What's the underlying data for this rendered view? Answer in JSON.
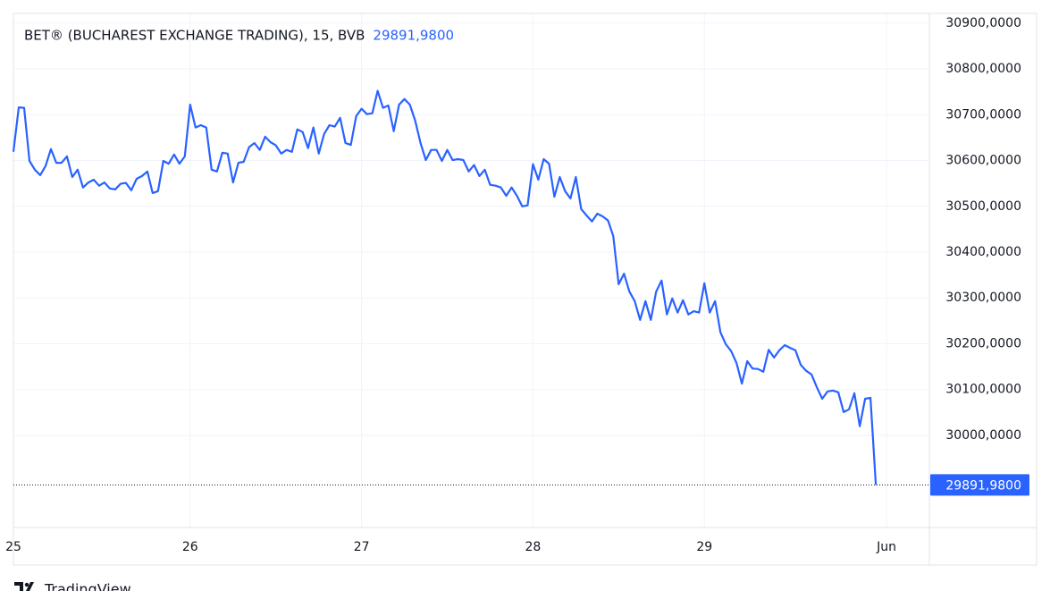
{
  "chart_data": {
    "type": "line",
    "title": "BET® (BUCHAREST EXCHANGE TRADING), 15, BVB",
    "last_value": {
      "value": 29891.98,
      "label": "29891,9800"
    },
    "brand": "TradingView",
    "grid": true,
    "xlim": [
      0,
      171
    ],
    "xticks": [
      {
        "value": 0,
        "label": "25"
      },
      {
        "value": 33,
        "label": "26"
      },
      {
        "value": 65,
        "label": "27"
      },
      {
        "value": 97,
        "label": "28"
      },
      {
        "value": 129,
        "label": "29"
      },
      {
        "value": 163,
        "label": "Jun"
      }
    ],
    "ylim": [
      29799,
      30921
    ],
    "yticks": [
      {
        "value": 30000,
        "label": "30000,0000"
      },
      {
        "value": 30100,
        "label": "30100,0000"
      },
      {
        "value": 30200,
        "label": "30200,0000"
      },
      {
        "value": 30300,
        "label": "30300,0000"
      },
      {
        "value": 30400,
        "label": "30400,0000"
      },
      {
        "value": 30500,
        "label": "30500,0000"
      },
      {
        "value": 30600,
        "label": "30600,0000"
      },
      {
        "value": 30700,
        "label": "30700,0000"
      },
      {
        "value": 30800,
        "label": "30800,0000"
      },
      {
        "value": 30900,
        "label": "30900,0000"
      }
    ],
    "series": [
      {
        "color": "#2962ff",
        "values": [
          30619,
          30716,
          30715,
          30599,
          30580,
          30568,
          30588,
          30625,
          30595,
          30595,
          30609,
          30564,
          30580,
          30541,
          30552,
          30558,
          30545,
          30552,
          30539,
          30537,
          30549,
          30551,
          30535,
          30560,
          30566,
          30576,
          30529,
          30533,
          30599,
          30593,
          30613,
          30593,
          30609,
          30722,
          30672,
          30677,
          30672,
          30580,
          30576,
          30617,
          30615,
          30552,
          30595,
          30597,
          30629,
          30638,
          30623,
          30652,
          30640,
          30633,
          30615,
          30623,
          30619,
          30668,
          30662,
          30627,
          30672,
          30615,
          30658,
          30677,
          30674,
          30693,
          30638,
          30634,
          30697,
          30713,
          30701,
          30703,
          30752,
          30715,
          30720,
          30664,
          30722,
          30734,
          30722,
          30687,
          30638,
          30601,
          30623,
          30623,
          30599,
          30623,
          30601,
          30603,
          30601,
          30576,
          30590,
          30566,
          30580,
          30547,
          30545,
          30541,
          30523,
          30541,
          30523,
          30500,
          30502,
          30592,
          30558,
          30603,
          30593,
          30521,
          30564,
          30533,
          30517,
          30564,
          30494,
          30480,
          30467,
          30484,
          30478,
          30469,
          30435,
          30330,
          30353,
          30314,
          30293,
          30252,
          30293,
          30252,
          30314,
          30338,
          30264,
          30299,
          30268,
          30295,
          30264,
          30271,
          30268,
          30332,
          30268,
          30293,
          30225,
          30199,
          30184,
          30158,
          30113,
          30162,
          30146,
          30145,
          30139,
          30187,
          30170,
          30186,
          30197,
          30191,
          30186,
          30154,
          30141,
          30133,
          30105,
          30080,
          30096,
          30098,
          30094,
          30051,
          30057,
          30092,
          30020,
          30080,
          30082,
          29891.98
        ]
      }
    ]
  }
}
